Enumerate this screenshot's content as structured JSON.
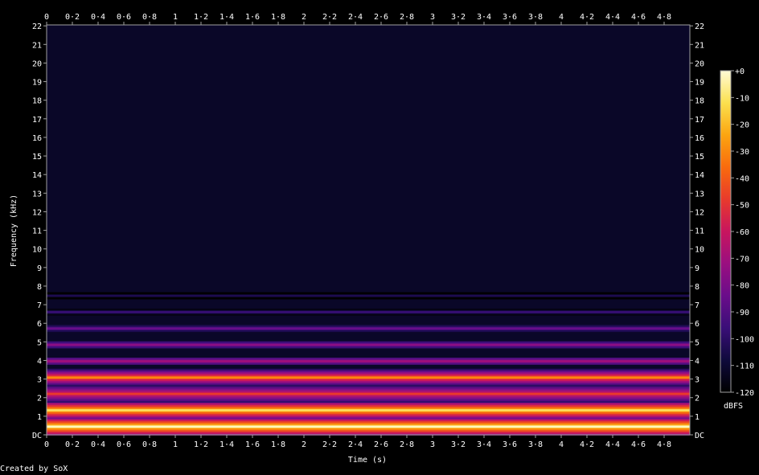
{
  "chart_data": {
    "type": "heatmap",
    "title": "",
    "xlabel": "Time (s)",
    "ylabel": "Frequency (kHz)",
    "xlim": [
      0,
      5
    ],
    "ylim": [
      0,
      22.05
    ],
    "x_tick_labels": [
      "0",
      "0·2",
      "0·4",
      "0·6",
      "0·8",
      "1",
      "1·2",
      "1·4",
      "1·6",
      "1·8",
      "2",
      "2·2",
      "2·4",
      "2·6",
      "2·8",
      "3",
      "3·2",
      "3·4",
      "3·6",
      "3·8",
      "4",
      "4·2",
      "4·4",
      "4·6",
      "4·8"
    ],
    "y_tick_labels": [
      "DC",
      "1",
      "2",
      "3",
      "4",
      "5",
      "6",
      "7",
      "8",
      "9",
      "10",
      "11",
      "12",
      "13",
      "14",
      "15",
      "16",
      "17",
      "18",
      "19",
      "20",
      "21",
      "22"
    ],
    "colorbar": {
      "label": "dBFS",
      "range": [
        -120,
        0
      ],
      "tick_labels": [
        "+0",
        "-10",
        "-20",
        "-30",
        "-40",
        "-50",
        "-60",
        "-70",
        "-80",
        "-90",
        "-100",
        "-110",
        "-120"
      ],
      "colormap": [
        "#000000",
        "#0f0a3c",
        "#3a0e78",
        "#6a0d8a",
        "#9a0f80",
        "#c8155e",
        "#e83a2c",
        "#f96b0d",
        "#fca510",
        "#fbe04e",
        "#fffbd6"
      ]
    },
    "noise_floor_dbfs": -112,
    "harmonics": [
      {
        "freq_khz": 0.44,
        "level_dbfs": -2
      },
      {
        "freq_khz": 1.32,
        "level_dbfs": -10
      },
      {
        "freq_khz": 2.2,
        "level_dbfs": -48
      },
      {
        "freq_khz": 3.08,
        "level_dbfs": -30
      },
      {
        "freq_khz": 3.96,
        "level_dbfs": -70
      },
      {
        "freq_khz": 4.84,
        "level_dbfs": -76
      },
      {
        "freq_khz": 5.72,
        "level_dbfs": -84
      },
      {
        "freq_khz": 6.6,
        "level_dbfs": -96
      },
      {
        "freq_khz": 7.48,
        "level_dbfs": -104
      }
    ]
  },
  "footer": {
    "credit": "Created by SoX"
  }
}
